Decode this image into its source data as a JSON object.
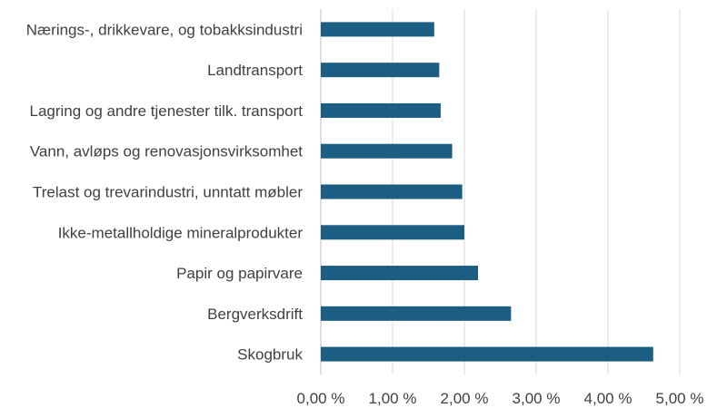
{
  "chart_data": {
    "type": "bar",
    "orientation": "horizontal",
    "categories": [
      "Næ­rings-, drikkevare, og tobakksindustri",
      "Landtransport",
      "Lagring og andre tjenester tilk. transport",
      "Vann, avløps og renovasjonsvirksomhet",
      "Trelast og trevarindustri, unntatt møbler",
      "Ikke-metallholdige mineralprodukter",
      "Papir og papirvare",
      "Bergverksdrift",
      "Skogbruk"
    ],
    "values": [
      1.58,
      1.65,
      1.67,
      1.83,
      1.97,
      2.0,
      2.19,
      2.65,
      4.63
    ],
    "xlim": [
      0,
      5
    ],
    "x_ticks": [
      "0,00 %",
      "1,00 %",
      "2,00 %",
      "3,00 %",
      "4,00 %",
      "5,00 %"
    ],
    "x_tick_values": [
      0,
      1,
      2,
      3,
      4,
      5
    ],
    "title": "",
    "xlabel": "",
    "ylabel": "",
    "grid": "vertical",
    "bar_color": "#1b5e82",
    "legend": "none"
  }
}
